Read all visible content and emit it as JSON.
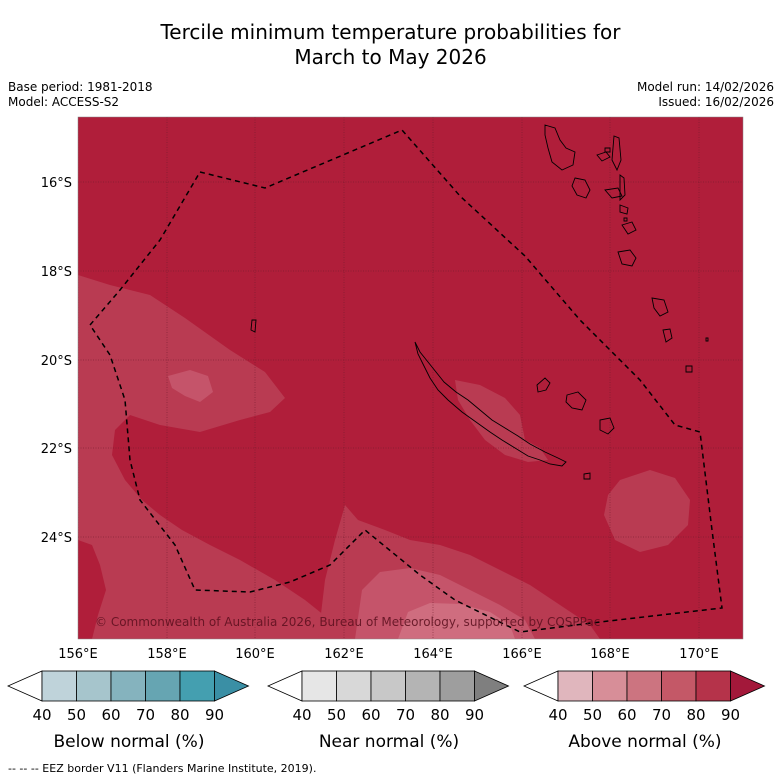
{
  "title_line1": "Tercile minimum temperature probabilities for",
  "title_line2": "March to May 2026",
  "base_period": "Base period: 1981-2018",
  "model": "Model: ACCESS-S2",
  "model_run": "Model run: 14/02/2026",
  "issued": "Issued: 16/02/2026",
  "copyright": "© Commonwealth of Australia 2026, Bureau of Meteorology, supported by COSPPac",
  "lat_labels": [
    "16°S",
    "18°S",
    "20°S",
    "22°S",
    "24°S"
  ],
  "lon_labels": [
    "156°E",
    "158°E",
    "160°E",
    "162°E",
    "164°E",
    "166°E",
    "168°E",
    "170°E"
  ],
  "colorbars": [
    {
      "title": "Below normal (%)",
      "ticks": [
        "40",
        "50",
        "60",
        "70",
        "80",
        "90"
      ],
      "colors": [
        "#ffffff",
        "#bfd3da",
        "#a6c5cc",
        "#85b3be",
        "#66a5b2",
        "#449fb0",
        "#3a8fa5"
      ]
    },
    {
      "title": "Near normal (%)",
      "ticks": [
        "40",
        "50",
        "60",
        "70",
        "80",
        "90"
      ],
      "colors": [
        "#ffffff",
        "#e6e6e6",
        "#d8d8d8",
        "#c8c8c8",
        "#b4b4b4",
        "#9e9e9e",
        "#7f7f7f"
      ]
    },
    {
      "title": "Above normal (%)",
      "ticks": [
        "40",
        "50",
        "60",
        "70",
        "80",
        "90"
      ],
      "colors": [
        "#ffffff",
        "#e0b6bd",
        "#d78e98",
        "#cc7480",
        "#c45867",
        "#b5334a",
        "#a3183a"
      ]
    }
  ],
  "map_colors": {
    "above_90": "#b01e3a",
    "above_80": "#b93b52",
    "above_70": "#c5546a"
  },
  "footer": "--  --  -- EEZ border V11 (Flanders Marine Institute, 2019)."
}
